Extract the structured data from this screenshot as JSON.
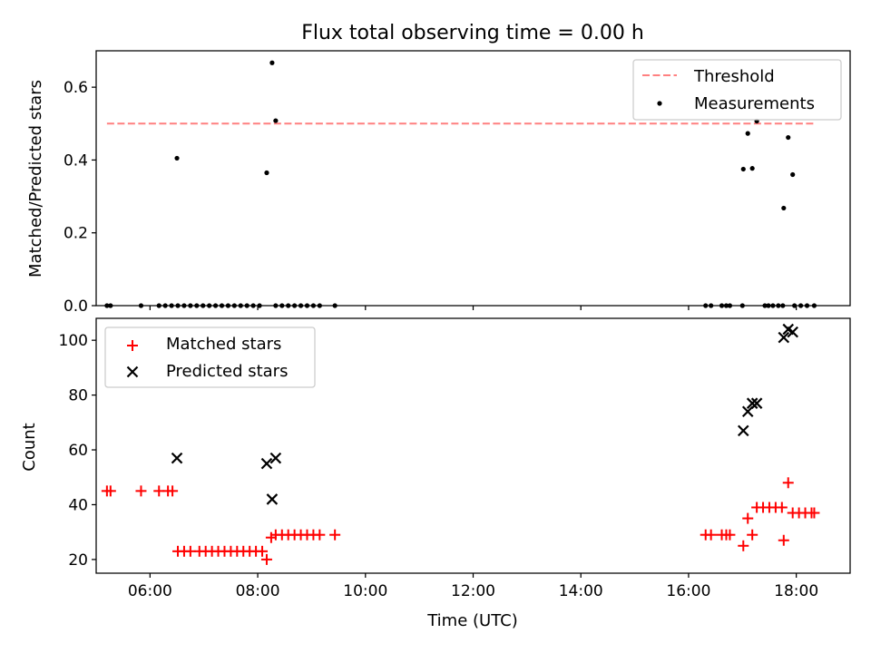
{
  "chart_data": [
    {
      "type": "scatter",
      "title": "Flux total observing time = 0.00 h",
      "xlabel": "",
      "ylabel": "Matched/Predicted stars",
      "xlim": [
        "05:00",
        "19:00"
      ],
      "ylim": [
        0,
        0.7
      ],
      "yticks": [
        "0.0",
        "0.2",
        "0.4",
        "0.6"
      ],
      "xticks": [
        "06:00",
        "08:00",
        "10:00",
        "12:00",
        "14:00",
        "16:00",
        "18:00"
      ],
      "xticklabels_shown": false,
      "legend_position": "upper right",
      "threshold": {
        "name": "Threshold",
        "color": "#ff8080",
        "style": "dashed",
        "y": 0.5,
        "x_range": [
          "05:12",
          "18:20"
        ]
      },
      "series": [
        {
          "name": "Measurements",
          "color": "#000000",
          "marker": "dot",
          "points": [
            [
              "05:12",
              0
            ],
            [
              "05:16",
              0
            ],
            [
              "05:50",
              0
            ],
            [
              "06:10",
              0
            ],
            [
              "06:17",
              0
            ],
            [
              "06:24",
              0
            ],
            [
              "06:31",
              0
            ],
            [
              "06:30",
              0.405
            ],
            [
              "06:38",
              0
            ],
            [
              "06:45",
              0
            ],
            [
              "06:52",
              0
            ],
            [
              "06:59",
              0
            ],
            [
              "07:06",
              0
            ],
            [
              "07:13",
              0
            ],
            [
              "07:20",
              0
            ],
            [
              "07:27",
              0
            ],
            [
              "07:34",
              0
            ],
            [
              "07:41",
              0
            ],
            [
              "07:48",
              0
            ],
            [
              "07:55",
              0
            ],
            [
              "08:02",
              0
            ],
            [
              "08:10",
              0.365
            ],
            [
              "08:16",
              0.667
            ],
            [
              "08:20",
              0.508
            ],
            [
              "08:20",
              0
            ],
            [
              "08:27",
              0
            ],
            [
              "08:34",
              0
            ],
            [
              "08:41",
              0
            ],
            [
              "08:48",
              0
            ],
            [
              "08:55",
              0
            ],
            [
              "09:02",
              0
            ],
            [
              "09:09",
              0
            ],
            [
              "09:26",
              0
            ],
            [
              "16:19",
              0
            ],
            [
              "16:25",
              0
            ],
            [
              "16:37",
              0
            ],
            [
              "16:42",
              0
            ],
            [
              "16:46",
              0
            ],
            [
              "17:00",
              0
            ],
            [
              "17:01",
              0.375
            ],
            [
              "17:06",
              0.473
            ],
            [
              "17:11",
              0.377
            ],
            [
              "17:16",
              0.507
            ],
            [
              "17:25",
              0
            ],
            [
              "17:29",
              0
            ],
            [
              "17:34",
              0
            ],
            [
              "17:40",
              0
            ],
            [
              "17:45",
              0
            ],
            [
              "17:46",
              0.268
            ],
            [
              "17:51",
              0.462
            ],
            [
              "17:56",
              0.36
            ],
            [
              "17:58",
              0
            ],
            [
              "18:05",
              0
            ],
            [
              "18:12",
              0
            ],
            [
              "18:20",
              0
            ]
          ]
        }
      ]
    },
    {
      "type": "scatter",
      "title": "",
      "xlabel": "Time (UTC)",
      "ylabel": "Count",
      "xlim": [
        "05:00",
        "19:00"
      ],
      "ylim": [
        15,
        108
      ],
      "yticks": [
        "20",
        "40",
        "60",
        "80",
        "100"
      ],
      "xticks": [
        "06:00",
        "08:00",
        "10:00",
        "12:00",
        "14:00",
        "16:00",
        "18:00"
      ],
      "legend_position": "upper left",
      "series": [
        {
          "name": "Matched stars",
          "color": "#ff0000",
          "marker": "plus",
          "points": [
            [
              "05:12",
              45
            ],
            [
              "05:16",
              45
            ],
            [
              "05:50",
              45
            ],
            [
              "06:10",
              45
            ],
            [
              "06:20",
              45
            ],
            [
              "06:25",
              45
            ],
            [
              "06:31",
              23
            ],
            [
              "06:38",
              23
            ],
            [
              "06:45",
              23
            ],
            [
              "06:55",
              23
            ],
            [
              "07:02",
              23
            ],
            [
              "07:09",
              23
            ],
            [
              "07:16",
              23
            ],
            [
              "07:23",
              23
            ],
            [
              "07:30",
              23
            ],
            [
              "07:37",
              23
            ],
            [
              "07:44",
              23
            ],
            [
              "07:51",
              23
            ],
            [
              "07:58",
              23
            ],
            [
              "08:05",
              23
            ],
            [
              "08:10",
              20
            ],
            [
              "08:15",
              28
            ],
            [
              "08:20",
              29
            ],
            [
              "08:27",
              29
            ],
            [
              "08:34",
              29
            ],
            [
              "08:41",
              29
            ],
            [
              "08:48",
              29
            ],
            [
              "08:55",
              29
            ],
            [
              "09:02",
              29
            ],
            [
              "09:09",
              29
            ],
            [
              "09:26",
              29
            ],
            [
              "16:19",
              29
            ],
            [
              "16:25",
              29
            ],
            [
              "16:37",
              29
            ],
            [
              "16:42",
              29
            ],
            [
              "16:46",
              29
            ],
            [
              "17:01",
              25
            ],
            [
              "17:06",
              35
            ],
            [
              "17:11",
              29
            ],
            [
              "17:16",
              39
            ],
            [
              "17:23",
              39
            ],
            [
              "17:30",
              39
            ],
            [
              "17:37",
              39
            ],
            [
              "17:44",
              39
            ],
            [
              "17:46",
              27
            ],
            [
              "17:51",
              48
            ],
            [
              "17:56",
              37
            ],
            [
              "18:03",
              37
            ],
            [
              "18:10",
              37
            ],
            [
              "18:17",
              37
            ],
            [
              "18:20",
              37
            ]
          ]
        },
        {
          "name": "Predicted stars",
          "color": "#000000",
          "marker": "x",
          "points": [
            [
              "06:30",
              57
            ],
            [
              "08:10",
              55
            ],
            [
              "08:16",
              42
            ],
            [
              "08:20",
              57
            ],
            [
              "17:01",
              67
            ],
            [
              "17:06",
              74
            ],
            [
              "17:11",
              77
            ],
            [
              "17:16",
              77
            ],
            [
              "17:46",
              101
            ],
            [
              "17:51",
              104
            ],
            [
              "17:56",
              103
            ]
          ]
        }
      ]
    }
  ]
}
